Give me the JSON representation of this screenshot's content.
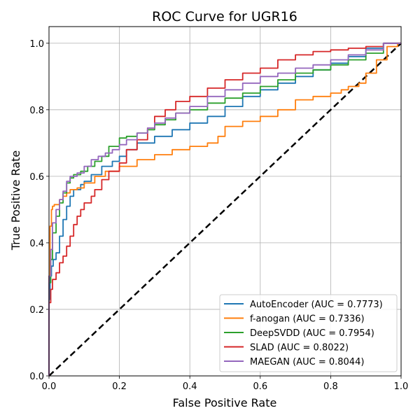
{
  "chart_data": {
    "type": "line",
    "title": "ROC Curve for UGR16",
    "xlabel": "False Positive Rate",
    "ylabel": "True Positive Rate",
    "xlim": [
      0,
      1
    ],
    "ylim": [
      0,
      1.05
    ],
    "x_ticks": [
      "0.0",
      "0.2",
      "0.4",
      "0.6",
      "0.8",
      "1.0"
    ],
    "y_ticks": [
      "0.0",
      "0.2",
      "0.4",
      "0.6",
      "0.8",
      "1.0"
    ],
    "grid": true,
    "legend_position": "bottom-right",
    "series": [
      {
        "name": "AutoEncoder (AUC = 0.7773)",
        "color": "#1f77b4",
        "points": [
          [
            0,
            0
          ],
          [
            0,
            0.18
          ],
          [
            0.003,
            0.23
          ],
          [
            0.007,
            0.3
          ],
          [
            0.012,
            0.33
          ],
          [
            0.02,
            0.35
          ],
          [
            0.03,
            0.37
          ],
          [
            0.04,
            0.42
          ],
          [
            0.05,
            0.47
          ],
          [
            0.06,
            0.51
          ],
          [
            0.07,
            0.54
          ],
          [
            0.09,
            0.56
          ],
          [
            0.1,
            0.575
          ],
          [
            0.12,
            0.585
          ],
          [
            0.15,
            0.605
          ],
          [
            0.18,
            0.63
          ],
          [
            0.2,
            0.645
          ],
          [
            0.22,
            0.66
          ],
          [
            0.25,
            0.68
          ],
          [
            0.3,
            0.7
          ],
          [
            0.35,
            0.72
          ],
          [
            0.4,
            0.74
          ],
          [
            0.45,
            0.76
          ],
          [
            0.5,
            0.78
          ],
          [
            0.55,
            0.81
          ],
          [
            0.6,
            0.84
          ],
          [
            0.65,
            0.86
          ],
          [
            0.7,
            0.88
          ],
          [
            0.75,
            0.9
          ],
          [
            0.8,
            0.92
          ],
          [
            0.85,
            0.94
          ],
          [
            0.9,
            0.96
          ],
          [
            0.95,
            0.985
          ],
          [
            1,
            1
          ]
        ]
      },
      {
        "name": "f-anogan (AUC = 0.7336)",
        "color": "#ff7f0e",
        "points": [
          [
            0,
            0
          ],
          [
            0,
            0.19
          ],
          [
            0.003,
            0.3
          ],
          [
            0.007,
            0.45
          ],
          [
            0.01,
            0.5
          ],
          [
            0.015,
            0.51
          ],
          [
            0.03,
            0.515
          ],
          [
            0.04,
            0.53
          ],
          [
            0.05,
            0.54
          ],
          [
            0.06,
            0.55
          ],
          [
            0.08,
            0.56
          ],
          [
            0.1,
            0.565
          ],
          [
            0.13,
            0.58
          ],
          [
            0.16,
            0.6
          ],
          [
            0.2,
            0.615
          ],
          [
            0.25,
            0.63
          ],
          [
            0.3,
            0.65
          ],
          [
            0.35,
            0.665
          ],
          [
            0.4,
            0.68
          ],
          [
            0.45,
            0.69
          ],
          [
            0.48,
            0.7
          ],
          [
            0.5,
            0.72
          ],
          [
            0.55,
            0.75
          ],
          [
            0.6,
            0.765
          ],
          [
            0.65,
            0.78
          ],
          [
            0.7,
            0.8
          ],
          [
            0.75,
            0.83
          ],
          [
            0.8,
            0.84
          ],
          [
            0.83,
            0.85
          ],
          [
            0.85,
            0.86
          ],
          [
            0.88,
            0.87
          ],
          [
            0.9,
            0.88
          ],
          [
            0.93,
            0.91
          ],
          [
            0.96,
            0.95
          ],
          [
            0.99,
            0.99
          ],
          [
            1,
            1
          ]
        ]
      },
      {
        "name": "DeepSVDD (AUC = 0.7954)",
        "color": "#2ca02c",
        "points": [
          [
            0,
            0
          ],
          [
            0,
            0.19
          ],
          [
            0.005,
            0.28
          ],
          [
            0.01,
            0.35
          ],
          [
            0.02,
            0.43
          ],
          [
            0.03,
            0.48
          ],
          [
            0.04,
            0.52
          ],
          [
            0.05,
            0.55
          ],
          [
            0.06,
            0.58
          ],
          [
            0.07,
            0.595
          ],
          [
            0.09,
            0.605
          ],
          [
            0.11,
            0.615
          ],
          [
            0.13,
            0.63
          ],
          [
            0.15,
            0.645
          ],
          [
            0.17,
            0.66
          ],
          [
            0.2,
            0.69
          ],
          [
            0.22,
            0.715
          ],
          [
            0.25,
            0.72
          ],
          [
            0.28,
            0.73
          ],
          [
            0.3,
            0.74
          ],
          [
            0.33,
            0.755
          ],
          [
            0.36,
            0.77
          ],
          [
            0.4,
            0.79
          ],
          [
            0.45,
            0.8
          ],
          [
            0.5,
            0.82
          ],
          [
            0.55,
            0.835
          ],
          [
            0.6,
            0.85
          ],
          [
            0.65,
            0.87
          ],
          [
            0.7,
            0.89
          ],
          [
            0.75,
            0.91
          ],
          [
            0.8,
            0.92
          ],
          [
            0.85,
            0.935
          ],
          [
            0.9,
            0.95
          ],
          [
            0.95,
            0.97
          ],
          [
            1,
            1
          ]
        ]
      },
      {
        "name": "SLAD (AUC = 0.8022)",
        "color": "#d62728",
        "points": [
          [
            0,
            0
          ],
          [
            0,
            0.17
          ],
          [
            0.005,
            0.22
          ],
          [
            0.01,
            0.26
          ],
          [
            0.02,
            0.29
          ],
          [
            0.03,
            0.31
          ],
          [
            0.04,
            0.34
          ],
          [
            0.05,
            0.36
          ],
          [
            0.06,
            0.39
          ],
          [
            0.07,
            0.42
          ],
          [
            0.08,
            0.455
          ],
          [
            0.09,
            0.48
          ],
          [
            0.1,
            0.5
          ],
          [
            0.12,
            0.52
          ],
          [
            0.13,
            0.54
          ],
          [
            0.15,
            0.56
          ],
          [
            0.17,
            0.59
          ],
          [
            0.2,
            0.615
          ],
          [
            0.22,
            0.64
          ],
          [
            0.25,
            0.68
          ],
          [
            0.28,
            0.71
          ],
          [
            0.3,
            0.745
          ],
          [
            0.33,
            0.78
          ],
          [
            0.36,
            0.8
          ],
          [
            0.4,
            0.825
          ],
          [
            0.45,
            0.84
          ],
          [
            0.5,
            0.865
          ],
          [
            0.55,
            0.89
          ],
          [
            0.6,
            0.91
          ],
          [
            0.65,
            0.925
          ],
          [
            0.7,
            0.95
          ],
          [
            0.75,
            0.965
          ],
          [
            0.8,
            0.975
          ],
          [
            0.85,
            0.98
          ],
          [
            0.9,
            0.985
          ],
          [
            0.95,
            0.99
          ],
          [
            1,
            1
          ]
        ]
      },
      {
        "name": "MAEGAN (AUC = 0.8044)",
        "color": "#9467bd",
        "points": [
          [
            0,
            0
          ],
          [
            0,
            0.18
          ],
          [
            0.005,
            0.3
          ],
          [
            0.01,
            0.38
          ],
          [
            0.02,
            0.46
          ],
          [
            0.03,
            0.5
          ],
          [
            0.04,
            0.53
          ],
          [
            0.05,
            0.555
          ],
          [
            0.06,
            0.585
          ],
          [
            0.08,
            0.6
          ],
          [
            0.1,
            0.61
          ],
          [
            0.12,
            0.63
          ],
          [
            0.14,
            0.65
          ],
          [
            0.16,
            0.66
          ],
          [
            0.18,
            0.67
          ],
          [
            0.2,
            0.68
          ],
          [
            0.22,
            0.695
          ],
          [
            0.25,
            0.71
          ],
          [
            0.28,
            0.73
          ],
          [
            0.3,
            0.745
          ],
          [
            0.33,
            0.76
          ],
          [
            0.36,
            0.775
          ],
          [
            0.4,
            0.79
          ],
          [
            0.45,
            0.81
          ],
          [
            0.5,
            0.84
          ],
          [
            0.55,
            0.86
          ],
          [
            0.6,
            0.88
          ],
          [
            0.65,
            0.9
          ],
          [
            0.7,
            0.91
          ],
          [
            0.75,
            0.925
          ],
          [
            0.8,
            0.935
          ],
          [
            0.85,
            0.95
          ],
          [
            0.9,
            0.965
          ],
          [
            0.95,
            0.98
          ],
          [
            1,
            1
          ]
        ]
      }
    ],
    "diagonal": {
      "color": "#000000",
      "style": "dashed",
      "points": [
        [
          0,
          0
        ],
        [
          1,
          1
        ]
      ]
    }
  }
}
